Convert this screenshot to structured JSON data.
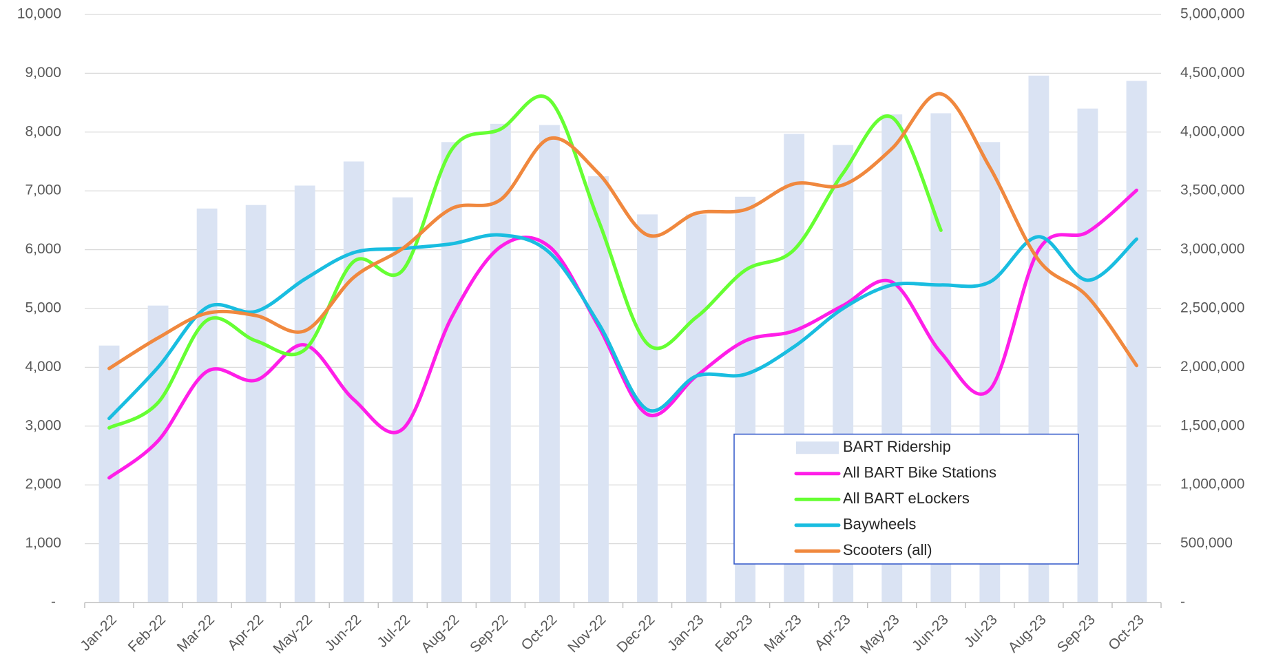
{
  "chart_data": {
    "type": "combo",
    "categories": [
      "Jan-22",
      "Feb-22",
      "Mar-22",
      "Apr-22",
      "May-22",
      "Jun-22",
      "Jul-22",
      "Aug-22",
      "Sep-22",
      "Oct-22",
      "Nov-22",
      "Dec-22",
      "Jan-23",
      "Feb-23",
      "Mar-23",
      "Apr-23",
      "May-23",
      "Jun-23",
      "Jul-23",
      "Aug-23",
      "Sep-23",
      "Oct-23"
    ],
    "series": [
      {
        "name": "BART Ridership",
        "type": "bar",
        "axis": "y2",
        "color": "#dae3f3",
        "values": [
          2185000,
          2525000,
          3350000,
          3380000,
          3545000,
          3750000,
          3445000,
          3915000,
          4070000,
          4060000,
          3625000,
          3300000,
          3300000,
          3450000,
          3985000,
          3890000,
          4150000,
          4160000,
          3915000,
          4480000,
          4200000,
          4435000
        ]
      },
      {
        "name": "All BART Bike Stations",
        "type": "line",
        "color": "#ff1ee8",
        "values": [
          2120,
          2750,
          3930,
          3780,
          4380,
          3450,
          2950,
          4850,
          6050,
          6050,
          4700,
          3200,
          3850,
          4450,
          4620,
          5050,
          5450,
          4250,
          3620,
          6000,
          6300,
          7010
        ]
      },
      {
        "name": "All BART eLockers",
        "type": "line",
        "color": "#66ff33",
        "values": [
          2970,
          3400,
          4800,
          4450,
          4300,
          5800,
          5650,
          7700,
          8050,
          8550,
          6500,
          4400,
          4850,
          5650,
          6000,
          7300,
          8250,
          6330,
          null,
          null,
          null,
          null
        ]
      },
      {
        "name": "Baywheels",
        "type": "line",
        "color": "#19bde0",
        "values": [
          3130,
          4000,
          5020,
          4950,
          5500,
          5950,
          6020,
          6100,
          6250,
          5950,
          4750,
          3280,
          3850,
          3880,
          4350,
          5000,
          5400,
          5400,
          5450,
          6220,
          5480,
          6180
        ]
      },
      {
        "name": "Scooters (all)",
        "type": "line",
        "color": "#f0883e",
        "values": [
          3980,
          4500,
          4920,
          4880,
          4620,
          5530,
          6020,
          6700,
          6850,
          7890,
          7300,
          6250,
          6620,
          6680,
          7120,
          7100,
          7720,
          8650,
          7400,
          5820,
          5200,
          4030
        ]
      }
    ],
    "ylim": [
      0,
      10000
    ],
    "yticks": [
      {
        "value": 0,
        "label": "-"
      },
      {
        "value": 1000,
        "label": "1,000"
      },
      {
        "value": 2000,
        "label": "2,000"
      },
      {
        "value": 3000,
        "label": "3,000"
      },
      {
        "value": 4000,
        "label": "4,000"
      },
      {
        "value": 5000,
        "label": "5,000"
      },
      {
        "value": 6000,
        "label": "6,000"
      },
      {
        "value": 7000,
        "label": "7,000"
      },
      {
        "value": 8000,
        "label": "8,000"
      },
      {
        "value": 9000,
        "label": "9,000"
      },
      {
        "value": 10000,
        "label": "10,000"
      }
    ],
    "y2lim": [
      0,
      5000000
    ],
    "y2ticks": [
      {
        "value": 0,
        "label": "-"
      },
      {
        "value": 500000,
        "label": "500,000"
      },
      {
        "value": 1000000,
        "label": "1,000,000"
      },
      {
        "value": 1500000,
        "label": "1,500,000"
      },
      {
        "value": 2000000,
        "label": "2,000,000"
      },
      {
        "value": 2500000,
        "label": "2,500,000"
      },
      {
        "value": 3000000,
        "label": "3,000,000"
      },
      {
        "value": 3500000,
        "label": "3,500,000"
      },
      {
        "value": 4000000,
        "label": "4,000,000"
      },
      {
        "value": 4500000,
        "label": "4,500,000"
      },
      {
        "value": 5000000,
        "label": "5,000,000"
      }
    ],
    "grid": true,
    "legend": "lower right"
  }
}
